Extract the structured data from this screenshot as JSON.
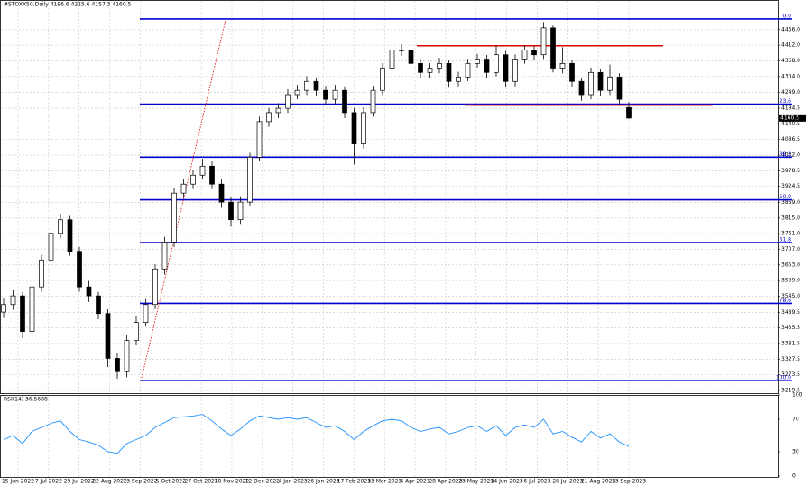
{
  "chart_data": {
    "type": "candlestick",
    "title": "#STOXX50,Daily 4196.6 4215.6 4157.3 4160.5",
    "open": [
      3490,
      3516,
      3546,
      3423,
      3577,
      3670,
      3762,
      3809,
      3700,
      3577,
      3546,
      3485,
      3330,
      3284,
      3392,
      3454,
      3516,
      3639,
      3732,
      3901,
      3932,
      3963,
      3994,
      3932,
      3870,
      3809,
      3870,
      4025,
      4148,
      4179,
      4194,
      4241,
      4256,
      4287,
      4256,
      4225,
      4256,
      4179,
      4071,
      4179,
      4256,
      4333,
      4395,
      4395,
      4349,
      4318,
      4333,
      4349,
      4287,
      4302,
      4349,
      4364,
      4318,
      4379,
      4287,
      4364,
      4395,
      4379,
      4472,
      4333,
      4349,
      4287,
      4241,
      4318,
      4256,
      4302,
      4196.6
    ],
    "high": [
      3540,
      3565,
      3560,
      3595,
      3688,
      3780,
      3830,
      3822,
      3715,
      3598,
      3560,
      3500,
      3350,
      3410,
      3475,
      3535,
      3655,
      3750,
      3918,
      3950,
      3980,
      4020,
      4010,
      3950,
      3888,
      3890,
      4040,
      4165,
      4195,
      4212,
      4260,
      4275,
      4305,
      4300,
      4272,
      4275,
      4270,
      4195,
      4198,
      4272,
      4350,
      4412,
      4415,
      4410,
      4365,
      4350,
      4368,
      4362,
      4320,
      4365,
      4382,
      4378,
      4412,
      4392,
      4380,
      4412,
      4410,
      4492,
      4480,
      4405,
      4362,
      4300,
      4335,
      4330,
      4345,
      4315,
      4215.6
    ],
    "low": [
      3470,
      3498,
      3400,
      3410,
      3560,
      3655,
      3745,
      3685,
      3560,
      3525,
      3465,
      3300,
      3260,
      3265,
      3375,
      3440,
      3500,
      3620,
      3715,
      3885,
      3915,
      3948,
      3915,
      3850,
      3785,
      3795,
      3855,
      4010,
      4130,
      4160,
      4178,
      4225,
      4240,
      4238,
      4205,
      4208,
      4160,
      4000,
      4055,
      4165,
      4240,
      4318,
      4375,
      4330,
      4300,
      4300,
      4315,
      4265,
      4270,
      4288,
      4335,
      4300,
      4305,
      4268,
      4270,
      4348,
      4362,
      4365,
      4318,
      4315,
      4268,
      4220,
      4225,
      4238,
      4240,
      4205,
      4157.3
    ],
    "close": [
      3516,
      3546,
      3423,
      3577,
      3670,
      3762,
      3809,
      3700,
      3577,
      3546,
      3485,
      3330,
      3284,
      3392,
      3454,
      3516,
      3639,
      3732,
      3901,
      3932,
      3963,
      3994,
      3932,
      3870,
      3809,
      3870,
      4025,
      4148,
      4179,
      4194,
      4241,
      4256,
      4287,
      4256,
      4225,
      4256,
      4179,
      4071,
      4179,
      4256,
      4333,
      4395,
      4395,
      4349,
      4318,
      4333,
      4349,
      4287,
      4302,
      4349,
      4364,
      4318,
      4379,
      4287,
      4364,
      4395,
      4379,
      4472,
      4333,
      4349,
      4287,
      4241,
      4318,
      4256,
      4302,
      4225,
      4160.5
    ],
    "date_labels": [
      "15 Jun 2022",
      "7 Jul 2022",
      "29 Jul 2022",
      "22 Aug 2022",
      "13 Sep 2022",
      "5 Oct 2022",
      "27 Oct 2022",
      "18 Nov 2022",
      "12 Dec 2022",
      "4 Jan 2023",
      "26 Jan 2023",
      "17 Feb 2023",
      "13 Mar 2023",
      "4 Apr 2023",
      "28 Apr 2023",
      "23 May 2023",
      "14 Jun 2023",
      "6 Jul 2023",
      "28 Jul 2023",
      "21 Aug 2023",
      "13 Sep 2023"
    ],
    "ylim": [
      3210,
      4565
    ],
    "yticks": [
      {
        "value": 4466,
        "label": "4466.0"
      },
      {
        "value": 4412,
        "label": "4412.0"
      },
      {
        "value": 4358,
        "label": "4358.0"
      },
      {
        "value": 4304,
        "label": "4304.0"
      },
      {
        "value": 4249,
        "label": "4249.0"
      },
      {
        "value": 4194.5,
        "label": "4194.5"
      },
      {
        "value": 4140.5,
        "label": "4140.5"
      },
      {
        "value": 4086.5,
        "label": "4086.5"
      },
      {
        "value": 4032,
        "label": "4032.0"
      },
      {
        "value": 3978.5,
        "label": "3978.5"
      },
      {
        "value": 3924.5,
        "label": "3924.5"
      },
      {
        "value": 3869,
        "label": "3869.0"
      },
      {
        "value": 3815,
        "label": "3815.0"
      },
      {
        "value": 3761,
        "label": "3761.0"
      },
      {
        "value": 3707,
        "label": "3707.0"
      },
      {
        "value": 3653,
        "label": "3653.0"
      },
      {
        "value": 3599,
        "label": "3599.0"
      },
      {
        "value": 3545,
        "label": "3545.0"
      },
      {
        "value": 3489.5,
        "label": "3489.5"
      },
      {
        "value": 3435.5,
        "label": "3435.5"
      },
      {
        "value": 3381.5,
        "label": "3381.5"
      },
      {
        "value": 3327.5,
        "label": "3327.5"
      },
      {
        "value": 3273.5,
        "label": "3273.5"
      },
      {
        "value": 3219.5,
        "label": "3219.5"
      }
    ],
    "grid": true,
    "fib_color": "#0000cc",
    "fib_levels": [
      {
        "value": 4503,
        "label": "0.0"
      },
      {
        "value": 4208,
        "label": "23.6"
      },
      {
        "value": 4025,
        "label": "38.2"
      },
      {
        "value": 3878,
        "label": "50.0"
      },
      {
        "value": 3730,
        "label": "61.8"
      },
      {
        "value": 3520,
        "label": "78.6"
      },
      {
        "value": 3253,
        "label": "100.0"
      }
    ],
    "resistance": 4410,
    "support": 4205,
    "level_color": "#e00000",
    "rsi": {
      "title": "RSI(14) 36.5688",
      "color": "#1e90ff",
      "ylim": [
        0,
        100
      ],
      "yticks": [
        0,
        30,
        70,
        100
      ],
      "values": [
        45,
        50,
        40,
        55,
        60,
        65,
        68,
        55,
        45,
        42,
        38,
        30,
        28,
        40,
        45,
        50,
        60,
        66,
        72,
        73,
        74,
        76,
        68,
        58,
        50,
        58,
        68,
        74,
        72,
        70,
        72,
        70,
        72,
        66,
        60,
        62,
        55,
        45,
        55,
        62,
        68,
        70,
        68,
        60,
        55,
        58,
        60,
        52,
        55,
        60,
        62,
        55,
        62,
        50,
        60,
        63,
        60,
        70,
        52,
        55,
        48,
        42,
        55,
        47,
        52,
        42,
        36.5688
      ]
    }
  }
}
